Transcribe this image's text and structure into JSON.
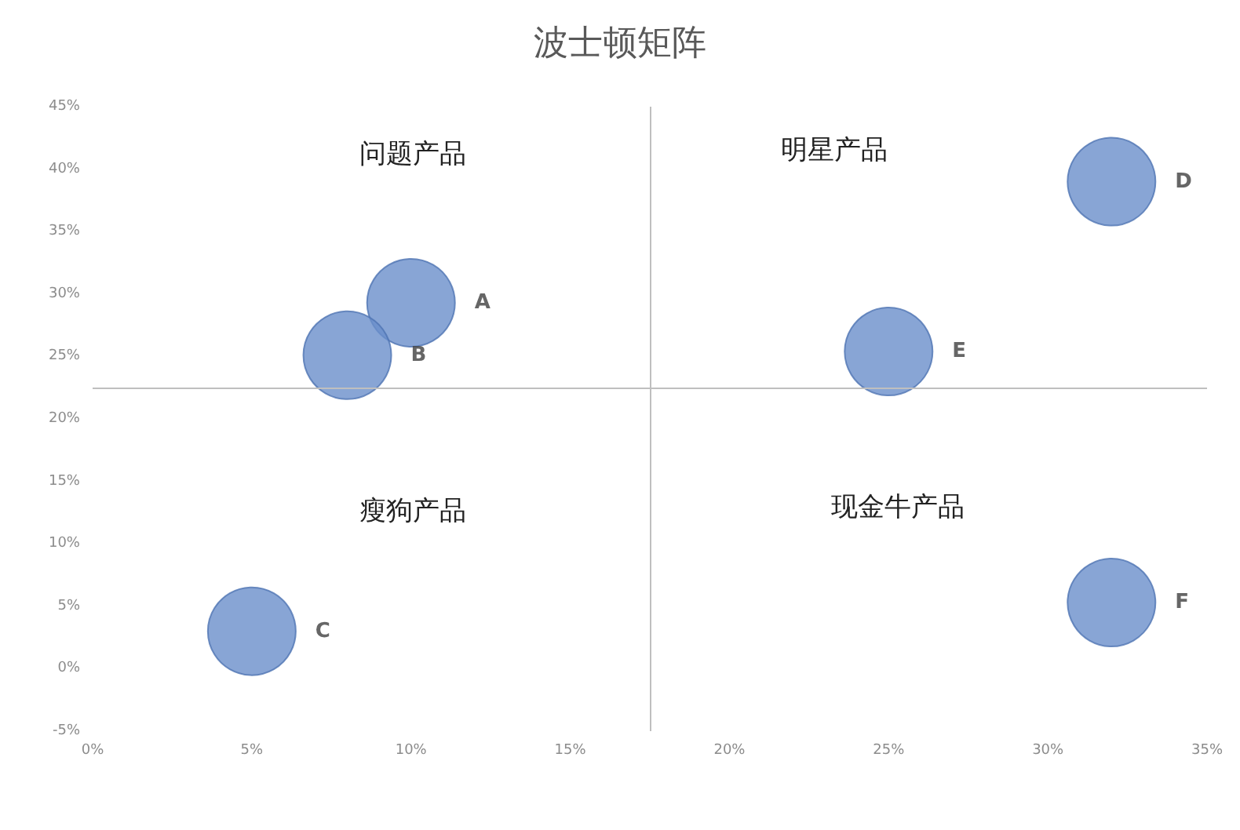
{
  "chart_data": {
    "type": "bubble",
    "title": "波士顿矩阵",
    "series": [
      {
        "name": "A",
        "color": "#6a8fcb",
        "x": [
          10
        ],
        "values": [
          29.3
        ],
        "sizes": [
          1
        ]
      },
      {
        "name": "B",
        "color": "#6a8fcb",
        "x": [
          8
        ],
        "values": [
          25.1
        ],
        "sizes": [
          1
        ]
      },
      {
        "name": "C",
        "color": "#6a8fcb",
        "x": [
          5
        ],
        "values": [
          3
        ],
        "sizes": [
          1
        ]
      },
      {
        "name": "D",
        "color": "#6a8fcb",
        "x": [
          32
        ],
        "values": [
          39
        ],
        "sizes": [
          1
        ]
      },
      {
        "name": "E",
        "color": "#6a8fcb",
        "x": [
          25
        ],
        "values": [
          25.4
        ],
        "sizes": [
          1
        ]
      },
      {
        "name": "F",
        "color": "#6a8fcb",
        "x": [
          32
        ],
        "values": [
          5.3
        ],
        "sizes": [
          1
        ]
      }
    ],
    "xlim": [
      0,
      35
    ],
    "ylim": [
      -5,
      45
    ],
    "xticks": [
      {
        "value": 0,
        "label": "0%"
      },
      {
        "value": 5,
        "label": "5%"
      },
      {
        "value": 10,
        "label": "10%"
      },
      {
        "value": 15,
        "label": "15%"
      },
      {
        "value": 20,
        "label": "20%"
      },
      {
        "value": 25,
        "label": "25%"
      },
      {
        "value": 30,
        "label": "30%"
      },
      {
        "value": 35,
        "label": "35%"
      }
    ],
    "yticks": [
      {
        "value": -5,
        "label": "-5%"
      },
      {
        "value": 0,
        "label": "0%"
      },
      {
        "value": 5,
        "label": "5%"
      },
      {
        "value": 10,
        "label": "10%"
      },
      {
        "value": 15,
        "label": "15%"
      },
      {
        "value": 20,
        "label": "20%"
      },
      {
        "value": 25,
        "label": "25%"
      },
      {
        "value": 30,
        "label": "30%"
      },
      {
        "value": 35,
        "label": "35%"
      },
      {
        "value": 40,
        "label": "40%"
      },
      {
        "value": 45,
        "label": "45%"
      }
    ],
    "ref_lines": [
      {
        "axis": "x",
        "value": 17.5,
        "color": "#bfbfbf"
      },
      {
        "axis": "y",
        "value": 22.5,
        "color": "#bfbfbf"
      }
    ],
    "annotations": [
      "问题产品",
      "明星产品",
      "瘦狗产品",
      "现金牛产品"
    ],
    "grid": false,
    "legend": false
  }
}
